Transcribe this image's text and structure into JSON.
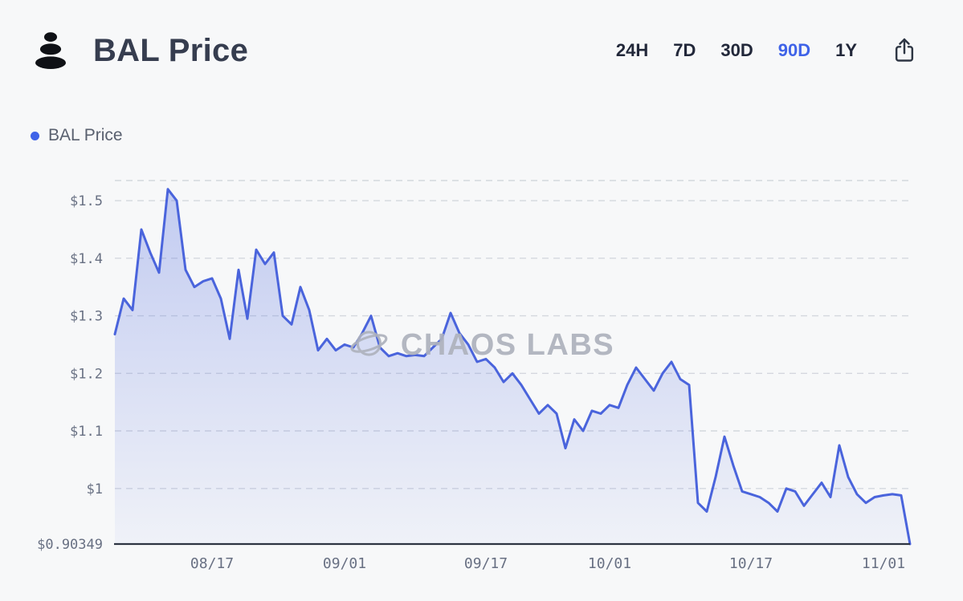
{
  "header": {
    "title": "BAL Price",
    "ranges": [
      "24H",
      "7D",
      "30D",
      "90D",
      "1Y"
    ],
    "selected_range": "90D"
  },
  "legend": {
    "label": "BAL Price"
  },
  "watermark": {
    "text": "CHAOS LABS"
  },
  "colors": {
    "accent_blue": "#3f63e8",
    "line": "#4a64dc",
    "area": "#5b74e0",
    "grid": "#d4d7de",
    "axis": "#2e3442",
    "background": "#f7f8f9",
    "tick_text": "#687083",
    "watermark_gray": "#aeb2bd"
  },
  "chart_data": {
    "type": "area",
    "title": "BAL Price",
    "series_name": "BAL Price",
    "grid": "dashed-horizontal",
    "legend_position": "top-left",
    "x_range_days": 90,
    "ylim": [
      0.90349,
      1.535
    ],
    "y_ticks": [
      {
        "value": 0.90349,
        "label": "$0.90349"
      },
      {
        "value": 1.0,
        "label": "$1"
      },
      {
        "value": 1.1,
        "label": "$1.1"
      },
      {
        "value": 1.2,
        "label": "$1.2"
      },
      {
        "value": 1.3,
        "label": "$1.3"
      },
      {
        "value": 1.4,
        "label": "$1.4"
      },
      {
        "value": 1.5,
        "label": "$1.5"
      }
    ],
    "x_tick_labels": [
      "08/17",
      "09/01",
      "09/17",
      "10/01",
      "10/17",
      "11/01"
    ],
    "x_tick_positions": [
      11,
      26,
      42,
      56,
      72,
      87
    ],
    "values": [
      1.268,
      1.33,
      1.31,
      1.45,
      1.41,
      1.375,
      1.52,
      1.5,
      1.38,
      1.35,
      1.36,
      1.365,
      1.33,
      1.26,
      1.38,
      1.295,
      1.415,
      1.39,
      1.41,
      1.3,
      1.285,
      1.35,
      1.31,
      1.24,
      1.26,
      1.24,
      1.25,
      1.245,
      1.27,
      1.3,
      1.245,
      1.23,
      1.235,
      1.23,
      1.232,
      1.23,
      1.245,
      1.26,
      1.305,
      1.27,
      1.25,
      1.22,
      1.225,
      1.21,
      1.185,
      1.2,
      1.18,
      1.155,
      1.13,
      1.145,
      1.13,
      1.07,
      1.12,
      1.1,
      1.135,
      1.13,
      1.145,
      1.14,
      1.18,
      1.21,
      1.19,
      1.17,
      1.2,
      1.22,
      1.19,
      1.18,
      0.975,
      0.96,
      1.02,
      1.09,
      1.04,
      0.995,
      0.99,
      0.985,
      0.975,
      0.96,
      1.0,
      0.995,
      0.97,
      0.99,
      1.01,
      0.985,
      1.075,
      1.02,
      0.99,
      0.975,
      0.985,
      0.988,
      0.99,
      0.988,
      0.90349
    ]
  }
}
